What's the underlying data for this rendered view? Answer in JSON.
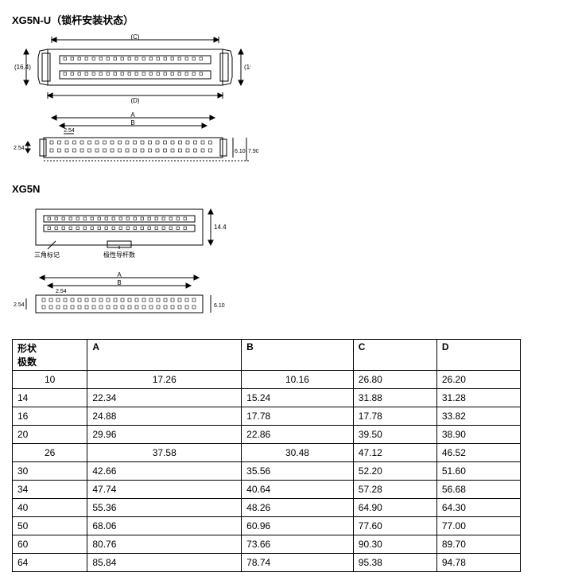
{
  "section1": {
    "title": "XG5N-U（锁杆安装状态）",
    "dims": {
      "left": "(16.4)",
      "right": "(15.6)",
      "top": "(C)",
      "bottom": "(D)",
      "pitch": "2.54",
      "rowpitch": "2.54",
      "h1": "6.10",
      "h2": "7.90",
      "A": "A",
      "B": "B"
    }
  },
  "section2": {
    "title": "XG5N",
    "dims": {
      "height": "14.4",
      "label1": "三角标记",
      "label2": "极性导杆数",
      "pitch": "2.54",
      "rowpitch": "2.54",
      "h1": "6.10",
      "A": "A",
      "B": "B"
    }
  },
  "table": {
    "headers": {
      "shape": "形状\n极数",
      "A": "A",
      "B": "B",
      "C": "C",
      "D": "D"
    },
    "rows": [
      {
        "shape": "10",
        "A": "17.26",
        "B": "10.16",
        "C": "26.80",
        "D": "26.20",
        "centerAB": true
      },
      {
        "shape": "14",
        "A": "22.34",
        "B": "15.24",
        "C": "31.88",
        "D": "31.28"
      },
      {
        "shape": "16",
        "A": "24.88",
        "B": "17.78",
        "C": "17.78",
        "D": "33.82"
      },
      {
        "shape": "20",
        "A": "29.96",
        "B": "22.86",
        "C": "39.50",
        "D": "38.90"
      },
      {
        "shape": "26",
        "A": "37.58",
        "B": "30.48",
        "C": "47.12",
        "D": "46.52",
        "centerAB": true
      },
      {
        "shape": "30",
        "A": "42.66",
        "B": "35.56",
        "C": "52.20",
        "D": "51.60"
      },
      {
        "shape": "34",
        "A": "47.74",
        "B": "40.64",
        "C": "57.28",
        "D": "56.68"
      },
      {
        "shape": "40",
        "A": "55.36",
        "B": "48.26",
        "C": "64.90",
        "D": "64.30"
      },
      {
        "shape": "50",
        "A": "68.06",
        "B": "60.96",
        "C": "77.60",
        "D": "77.00"
      },
      {
        "shape": "60",
        "A": "80.76",
        "B": "73.66",
        "C": "90.30",
        "D": "89.70"
      },
      {
        "shape": "64",
        "A": "85.84",
        "B": "78.74",
        "C": "95.38",
        "D": "94.78"
      }
    ]
  },
  "colors": {
    "line": "#000000",
    "bg": "#ffffff"
  }
}
